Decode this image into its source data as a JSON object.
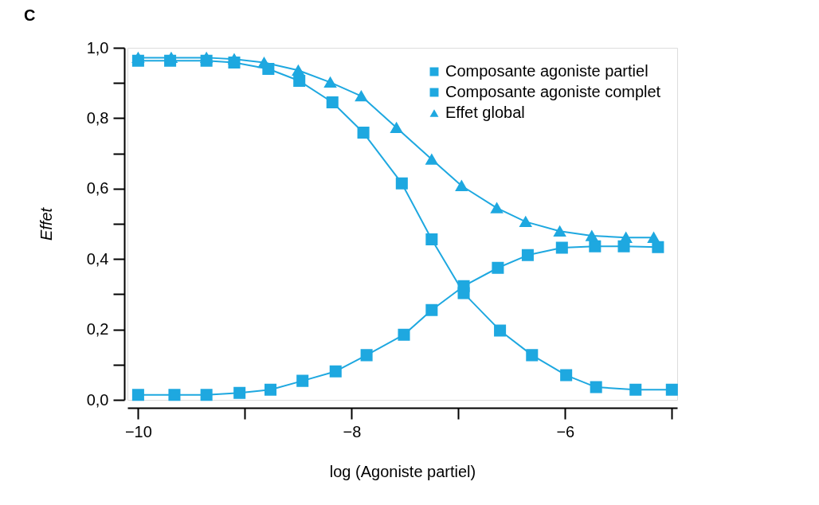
{
  "chart_data": {
    "type": "line",
    "title": "C",
    "xlabel": "log (Agoniste partiel)",
    "ylabel": "Effet",
    "xlim": [
      -10.1,
      -4.95
    ],
    "ylim": [
      0,
      1
    ],
    "xticks": [
      {
        "value": -10,
        "label": "−10"
      },
      {
        "value": -9,
        "label": null
      },
      {
        "value": -8,
        "label": "−8"
      },
      {
        "value": -7,
        "label": null
      },
      {
        "value": -6,
        "label": "−6"
      },
      {
        "value": -5,
        "label": null
      }
    ],
    "yticks": [
      {
        "value": 0,
        "label": "0,0"
      },
      {
        "value": 0.1,
        "label": null
      },
      {
        "value": 0.2,
        "label": "0,2"
      },
      {
        "value": 0.3,
        "label": null
      },
      {
        "value": 0.4,
        "label": "0,4"
      },
      {
        "value": 0.5,
        "label": null
      },
      {
        "value": 0.6,
        "label": "0,6"
      },
      {
        "value": 0.7,
        "label": null
      },
      {
        "value": 0.8,
        "label": "0,8"
      },
      {
        "value": 0.9,
        "label": null
      },
      {
        "value": 1.0,
        "label": "1,0"
      }
    ],
    "grid": false,
    "legend": "top right",
    "line_style": "solid",
    "series": [
      {
        "name": "Composante agoniste partiel",
        "color": "#1ea8e0",
        "marker": "square",
        "x": [
          -10,
          -9.66,
          -9.36,
          -9.05,
          -8.76,
          -8.46,
          -8.15,
          -7.86,
          -7.51,
          -7.25,
          -6.95,
          -6.63,
          -6.35,
          -6.03,
          -5.72,
          -5.45,
          -5.13
        ],
        "values": [
          0.014,
          0.014,
          0.014,
          0.02,
          0.029,
          0.054,
          0.081,
          0.127,
          0.185,
          0.255,
          0.323,
          0.375,
          0.411,
          0.432,
          0.436,
          0.436,
          0.434
        ]
      },
      {
        "name": "Composante agoniste complet",
        "color": "#1ea8e0",
        "marker": "square",
        "x": [
          -10,
          -9.7,
          -9.36,
          -9.1,
          -8.78,
          -8.49,
          -8.18,
          -7.89,
          -7.53,
          -7.25,
          -6.95,
          -6.61,
          -6.31,
          -5.99,
          -5.71,
          -5.34,
          -5.0
        ],
        "values": [
          0.963,
          0.963,
          0.963,
          0.958,
          0.94,
          0.906,
          0.845,
          0.759,
          0.615,
          0.456,
          0.303,
          0.197,
          0.127,
          0.07,
          0.036,
          0.029,
          0.029
        ]
      },
      {
        "name": "Effet global",
        "color": "#1ea8e0",
        "marker": "triangle",
        "x": [
          -10,
          -9.69,
          -9.36,
          -9.1,
          -8.82,
          -8.5,
          -8.2,
          -7.91,
          -7.58,
          -7.25,
          -6.97,
          -6.64,
          -6.37,
          -6.05,
          -5.75,
          -5.43,
          -5.17
        ],
        "values": [
          0.972,
          0.972,
          0.972,
          0.968,
          0.958,
          0.936,
          0.902,
          0.863,
          0.773,
          0.683,
          0.608,
          0.545,
          0.506,
          0.479,
          0.466,
          0.461,
          0.461
        ]
      }
    ]
  }
}
